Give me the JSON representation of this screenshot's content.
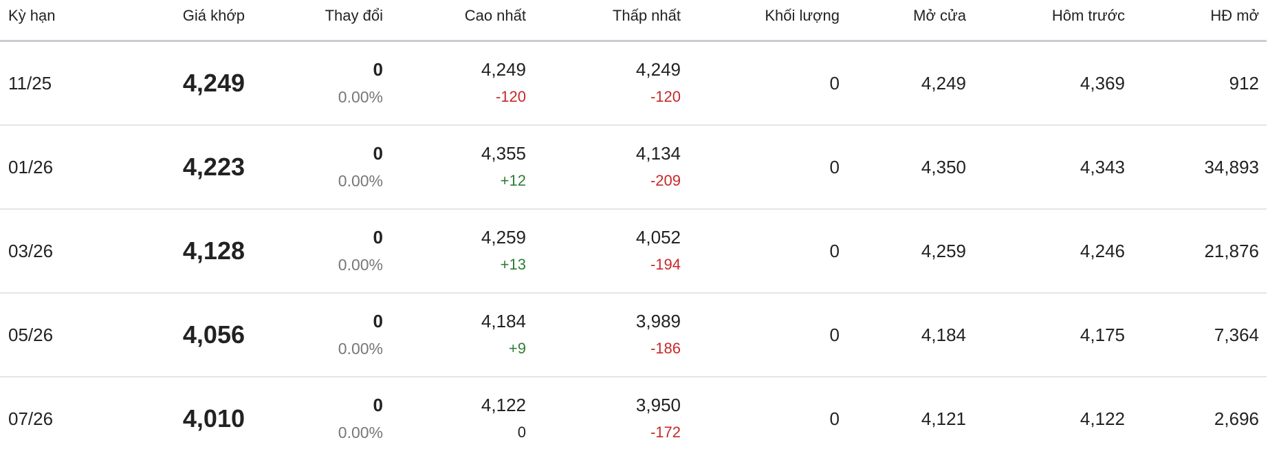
{
  "headers": [
    "Kỳ hạn",
    "Giá khớp",
    "Thay đổi",
    "Cao nhất",
    "Thấp nhất",
    "Khối lượng",
    "Mở cửa",
    "Hôm trước",
    "HĐ mở"
  ],
  "colors": {
    "up": "#2e7d32",
    "down": "#c62828"
  },
  "rows": [
    {
      "term": "11/25",
      "price": "4,249",
      "change": "0",
      "change_pct": "0.00%",
      "high": "4,249",
      "high_diff": "-120",
      "low": "4,249",
      "low_diff": "-120",
      "volume": "0",
      "open": "4,249",
      "prev": "4,369",
      "oi": "912"
    },
    {
      "term": "01/26",
      "price": "4,223",
      "change": "0",
      "change_pct": "0.00%",
      "high": "4,355",
      "high_diff": "+12",
      "low": "4,134",
      "low_diff": "-209",
      "volume": "0",
      "open": "4,350",
      "prev": "4,343",
      "oi": "34,893"
    },
    {
      "term": "03/26",
      "price": "4,128",
      "change": "0",
      "change_pct": "0.00%",
      "high": "4,259",
      "high_diff": "+13",
      "low": "4,052",
      "low_diff": "-194",
      "volume": "0",
      "open": "4,259",
      "prev": "4,246",
      "oi": "21,876"
    },
    {
      "term": "05/26",
      "price": "4,056",
      "change": "0",
      "change_pct": "0.00%",
      "high": "4,184",
      "high_diff": "+9",
      "low": "3,989",
      "low_diff": "-186",
      "volume": "0",
      "open": "4,184",
      "prev": "4,175",
      "oi": "7,364"
    },
    {
      "term": "07/26",
      "price": "4,010",
      "change": "0",
      "change_pct": "0.00%",
      "high": "4,122",
      "high_diff": "0",
      "low": "3,950",
      "low_diff": "-172",
      "volume": "0",
      "open": "4,121",
      "prev": "4,122",
      "oi": "2,696"
    }
  ]
}
